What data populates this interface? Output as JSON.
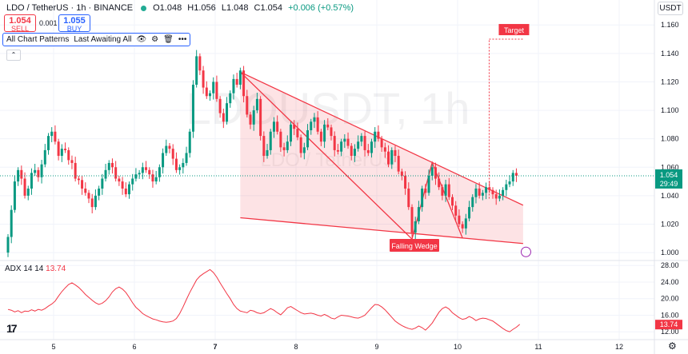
{
  "header": {
    "symbol": "LDO / TetherUS · 1h · BINANCE",
    "open": "O1.048",
    "high": "H1.056",
    "low": "L1.048",
    "close": "C1.054",
    "change": "+0.006 (+0.57%)",
    "sell_price": "1.054",
    "sell_label": "SELL",
    "buy_price": "1.055",
    "buy_label": "BUY",
    "spread": "0.001",
    "currency": "USDT",
    "pattern_label": "All Chart Patterns",
    "pattern_sub": "Last Awaiting All",
    "collapse_icon": "chevron-up-icon"
  },
  "watermark": {
    "main": "LDOUSDT, 1h",
    "sub": "LDO / TetherUS"
  },
  "colors": {
    "up": "#089981",
    "down": "#f23645",
    "wedge": "#f23645",
    "adx": "#f23645",
    "price_tag": "#089981"
  },
  "chart_data": [
    {
      "type": "candlestick",
      "title": "LDO / TetherUS · 1h · BINANCE",
      "x_ticks": [
        "5",
        "6",
        "7",
        "8",
        "9",
        "10",
        "11",
        "12"
      ],
      "y_ticks": [
        "1.000",
        "1.020",
        "1.040",
        "1.060",
        "1.080",
        "1.100",
        "1.120",
        "1.140",
        "1.160"
      ],
      "ylim": [
        0.995,
        1.168
      ],
      "last_price": "1.054",
      "countdown": "29:49",
      "closes": [
        1.011,
        1.03,
        1.05,
        1.058,
        1.052,
        1.04,
        1.045,
        1.056,
        1.058,
        1.053,
        1.062,
        1.072,
        1.082,
        1.085,
        1.078,
        1.068,
        1.073,
        1.072,
        1.065,
        1.063,
        1.052,
        1.051,
        1.045,
        1.042,
        1.038,
        1.032,
        1.04,
        1.045,
        1.052,
        1.058,
        1.063,
        1.06,
        1.052,
        1.05,
        1.045,
        1.041,
        1.048,
        1.052,
        1.055,
        1.056,
        1.06,
        1.058,
        1.055,
        1.05,
        1.053,
        1.06,
        1.07,
        1.075,
        1.073,
        1.066,
        1.058,
        1.06,
        1.063,
        1.07,
        1.085,
        1.118,
        1.138,
        1.128,
        1.116,
        1.11,
        1.112,
        1.12,
        1.108,
        1.098,
        1.092,
        1.105,
        1.112,
        1.122,
        1.118,
        1.128,
        1.11,
        1.097,
        1.09,
        1.1,
        1.108,
        1.082,
        1.068,
        1.072,
        1.085,
        1.092,
        1.085,
        1.074,
        1.072,
        1.078,
        1.09,
        1.087,
        1.081,
        1.07,
        1.074,
        1.086,
        1.092,
        1.095,
        1.085,
        1.078,
        1.09,
        1.088,
        1.082,
        1.072,
        1.071,
        1.078,
        1.08,
        1.075,
        1.068,
        1.073,
        1.078,
        1.082,
        1.072,
        1.07,
        1.078,
        1.085,
        1.08,
        1.074,
        1.071,
        1.062,
        1.072,
        1.068,
        1.057,
        1.054,
        1.045,
        1.032,
        1.014,
        1.022,
        1.032,
        1.045,
        1.042,
        1.054,
        1.06,
        1.052,
        1.046,
        1.04,
        1.048,
        1.039,
        1.033,
        1.026,
        1.02,
        1.017,
        1.024,
        1.032,
        1.039,
        1.045,
        1.04,
        1.042,
        1.046,
        1.044,
        1.041,
        1.038,
        1.04,
        1.044,
        1.048,
        1.05,
        1.056,
        1.054
      ],
      "annotations": {
        "pattern": "Falling Wedge",
        "target_label": "Target",
        "target_price": 1.15
      }
    },
    {
      "type": "line",
      "title": "ADX",
      "params": "14 14",
      "value": "13.74",
      "y_ticks": [
        "12.00",
        "16.00",
        "20.00",
        "24.00",
        "28.00"
      ],
      "ylim": [
        10.5,
        29
      ],
      "values": [
        17.4,
        17.2,
        16.8,
        17.1,
        16.6,
        17.0,
        16.9,
        17.3,
        17.0,
        17.4,
        17.2,
        17.6,
        18.2,
        18.7,
        19.4,
        20.6,
        21.7,
        22.6,
        23.4,
        23.8,
        23.3,
        22.7,
        21.9,
        21.0,
        20.3,
        19.6,
        19.0,
        18.6,
        18.9,
        19.5,
        20.4,
        21.6,
        22.4,
        22.8,
        22.3,
        21.5,
        20.3,
        19.0,
        17.9,
        17.2,
        16.4,
        15.9,
        15.5,
        15.1,
        14.9,
        14.6,
        14.4,
        14.3,
        14.4,
        14.6,
        15.2,
        16.4,
        18.0,
        19.8,
        21.5,
        23.0,
        24.5,
        25.4,
        26.0,
        26.5,
        27.0,
        26.3,
        25.2,
        23.8,
        22.5,
        21.2,
        20.0,
        18.6,
        17.6,
        17.0,
        16.8,
        16.6,
        17.2,
        17.0,
        16.6,
        16.4,
        16.6,
        17.1,
        17.6,
        17.2,
        16.6,
        16.1,
        16.9,
        17.8,
        18.1,
        17.6,
        17.1,
        16.6,
        16.3,
        16.4,
        16.5,
        16.3,
        16.0,
        15.8,
        16.2,
        15.8,
        15.3,
        15.1,
        15.6,
        16.0,
        15.9,
        15.8,
        15.6,
        15.4,
        15.3,
        15.6,
        16.0,
        16.9,
        17.8,
        18.6,
        18.5,
        18.0,
        17.3,
        16.4,
        15.5,
        14.6,
        14.0,
        13.5,
        13.1,
        12.8,
        12.6,
        12.9,
        13.4,
        13.0,
        12.4,
        13.2,
        14.1,
        15.4,
        16.7,
        17.6,
        18.0,
        17.5,
        16.6,
        16.0,
        15.4,
        15.0,
        15.2,
        15.7,
        15.3,
        14.7,
        15.1,
        15.3,
        15.2,
        14.9,
        14.6,
        14.0,
        13.4,
        12.8,
        12.3,
        12.0,
        12.6,
        13.1,
        13.8
      ]
    }
  ]
}
